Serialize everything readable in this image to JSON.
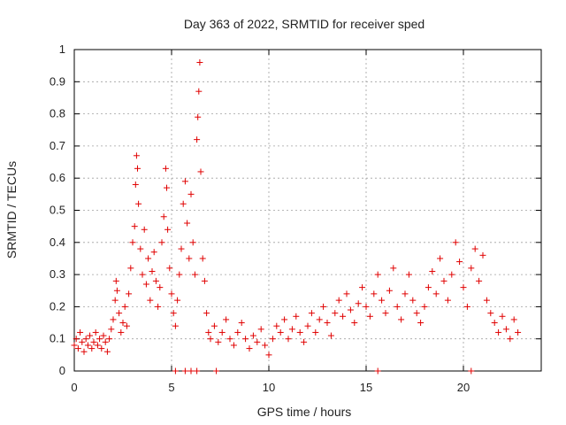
{
  "chart_data": {
    "type": "scatter",
    "title": "Day 363 of 2022, SRMTID for receiver sped",
    "xlabel": "GPS time / hours",
    "ylabel": "SRMTID / TECUs",
    "xlim": [
      0,
      24
    ],
    "ylim": [
      0,
      1
    ],
    "xticks": [
      0,
      5,
      10,
      15,
      20
    ],
    "xtick_labels": [
      "0",
      "5",
      "10",
      "15",
      "20"
    ],
    "yticks": [
      0,
      0.1,
      0.2,
      0.3,
      0.4,
      0.5,
      0.6,
      0.7,
      0.8,
      0.9,
      1
    ],
    "ytick_labels": [
      "0",
      "0.1",
      "0.2",
      "0.3",
      "0.4",
      "0.5",
      "0.6",
      "0.7",
      "0.8",
      "0.9",
      "1"
    ],
    "grid": true,
    "marker": "plus",
    "color": "#e00000",
    "series": [
      {
        "name": "SRMTID",
        "points": [
          [
            0.0,
            0.08
          ],
          [
            0.1,
            0.1
          ],
          [
            0.2,
            0.07
          ],
          [
            0.3,
            0.12
          ],
          [
            0.4,
            0.09
          ],
          [
            0.5,
            0.06
          ],
          [
            0.6,
            0.1
          ],
          [
            0.7,
            0.08
          ],
          [
            0.8,
            0.11
          ],
          [
            0.9,
            0.07
          ],
          [
            1.0,
            0.09
          ],
          [
            1.1,
            0.12
          ],
          [
            1.2,
            0.08
          ],
          [
            1.3,
            0.1
          ],
          [
            1.4,
            0.07
          ],
          [
            1.5,
            0.11
          ],
          [
            1.6,
            0.09
          ],
          [
            1.7,
            0.06
          ],
          [
            1.8,
            0.1
          ],
          [
            1.9,
            0.13
          ],
          [
            2.0,
            0.16
          ],
          [
            2.1,
            0.22
          ],
          [
            2.15,
            0.28
          ],
          [
            2.2,
            0.25
          ],
          [
            2.3,
            0.18
          ],
          [
            2.4,
            0.12
          ],
          [
            2.5,
            0.15
          ],
          [
            2.6,
            0.2
          ],
          [
            2.7,
            0.14
          ],
          [
            2.8,
            0.24
          ],
          [
            2.9,
            0.32
          ],
          [
            3.0,
            0.4
          ],
          [
            3.1,
            0.45
          ],
          [
            3.15,
            0.58
          ],
          [
            3.2,
            0.67
          ],
          [
            3.25,
            0.63
          ],
          [
            3.3,
            0.52
          ],
          [
            3.4,
            0.38
          ],
          [
            3.5,
            0.3
          ],
          [
            3.6,
            0.44
          ],
          [
            3.7,
            0.27
          ],
          [
            3.8,
            0.35
          ],
          [
            3.9,
            0.22
          ],
          [
            4.0,
            0.31
          ],
          [
            4.1,
            0.37
          ],
          [
            4.2,
            0.28
          ],
          [
            4.3,
            0.2
          ],
          [
            4.4,
            0.26
          ],
          [
            4.5,
            0.4
          ],
          [
            4.6,
            0.48
          ],
          [
            4.7,
            0.63
          ],
          [
            4.75,
            0.57
          ],
          [
            4.8,
            0.44
          ],
          [
            4.9,
            0.32
          ],
          [
            5.0,
            0.24
          ],
          [
            5.1,
            0.18
          ],
          [
            5.2,
            0.14
          ],
          [
            5.3,
            0.22
          ],
          [
            5.4,
            0.3
          ],
          [
            5.5,
            0.38
          ],
          [
            5.6,
            0.52
          ],
          [
            5.7,
            0.59
          ],
          [
            5.8,
            0.46
          ],
          [
            5.9,
            0.35
          ],
          [
            6.0,
            0.55
          ],
          [
            6.1,
            0.4
          ],
          [
            6.2,
            0.3
          ],
          [
            6.3,
            0.72
          ],
          [
            6.35,
            0.79
          ],
          [
            6.4,
            0.87
          ],
          [
            6.45,
            0.96
          ],
          [
            6.5,
            0.62
          ],
          [
            6.6,
            0.35
          ],
          [
            6.7,
            0.28
          ],
          [
            6.8,
            0.18
          ],
          [
            6.9,
            0.12
          ],
          [
            7.0,
            0.1
          ],
          [
            7.2,
            0.14
          ],
          [
            7.4,
            0.09
          ],
          [
            7.6,
            0.12
          ],
          [
            7.8,
            0.16
          ],
          [
            8.0,
            0.1
          ],
          [
            8.2,
            0.08
          ],
          [
            8.4,
            0.12
          ],
          [
            8.6,
            0.15
          ],
          [
            8.8,
            0.1
          ],
          [
            9.0,
            0.07
          ],
          [
            9.2,
            0.11
          ],
          [
            9.4,
            0.09
          ],
          [
            9.6,
            0.13
          ],
          [
            9.8,
            0.08
          ],
          [
            10.0,
            0.05
          ],
          [
            10.2,
            0.1
          ],
          [
            10.4,
            0.14
          ],
          [
            10.6,
            0.12
          ],
          [
            10.8,
            0.16
          ],
          [
            11.0,
            0.1
          ],
          [
            11.2,
            0.13
          ],
          [
            11.4,
            0.17
          ],
          [
            11.6,
            0.12
          ],
          [
            11.8,
            0.09
          ],
          [
            12.0,
            0.14
          ],
          [
            12.2,
            0.18
          ],
          [
            12.4,
            0.12
          ],
          [
            12.6,
            0.16
          ],
          [
            12.8,
            0.2
          ],
          [
            13.0,
            0.15
          ],
          [
            13.2,
            0.11
          ],
          [
            13.4,
            0.18
          ],
          [
            13.6,
            0.22
          ],
          [
            13.8,
            0.17
          ],
          [
            14.0,
            0.24
          ],
          [
            14.2,
            0.19
          ],
          [
            14.4,
            0.15
          ],
          [
            14.6,
            0.21
          ],
          [
            14.8,
            0.26
          ],
          [
            15.0,
            0.2
          ],
          [
            15.2,
            0.17
          ],
          [
            15.4,
            0.24
          ],
          [
            15.6,
            0.3
          ],
          [
            15.8,
            0.22
          ],
          [
            16.0,
            0.18
          ],
          [
            16.2,
            0.25
          ],
          [
            16.4,
            0.32
          ],
          [
            16.6,
            0.2
          ],
          [
            16.8,
            0.16
          ],
          [
            17.0,
            0.24
          ],
          [
            17.2,
            0.3
          ],
          [
            17.4,
            0.22
          ],
          [
            17.6,
            0.18
          ],
          [
            17.8,
            0.15
          ],
          [
            18.0,
            0.2
          ],
          [
            18.2,
            0.26
          ],
          [
            18.4,
            0.31
          ],
          [
            18.6,
            0.24
          ],
          [
            18.8,
            0.35
          ],
          [
            19.0,
            0.28
          ],
          [
            19.2,
            0.22
          ],
          [
            19.4,
            0.3
          ],
          [
            19.6,
            0.4
          ],
          [
            19.8,
            0.34
          ],
          [
            20.0,
            0.26
          ],
          [
            20.2,
            0.2
          ],
          [
            20.4,
            0.32
          ],
          [
            20.6,
            0.38
          ],
          [
            20.8,
            0.28
          ],
          [
            21.0,
            0.36
          ],
          [
            21.2,
            0.22
          ],
          [
            21.4,
            0.18
          ],
          [
            21.6,
            0.15
          ],
          [
            21.8,
            0.12
          ],
          [
            22.0,
            0.17
          ],
          [
            22.2,
            0.13
          ],
          [
            22.4,
            0.1
          ],
          [
            22.6,
            0.16
          ],
          [
            22.8,
            0.12
          ],
          [
            5.2,
            0.0
          ],
          [
            5.7,
            0.0
          ],
          [
            6.0,
            0.0
          ],
          [
            6.3,
            0.0
          ],
          [
            7.3,
            0.0
          ],
          [
            15.6,
            0.0
          ],
          [
            20.4,
            0.0
          ]
        ]
      }
    ]
  }
}
